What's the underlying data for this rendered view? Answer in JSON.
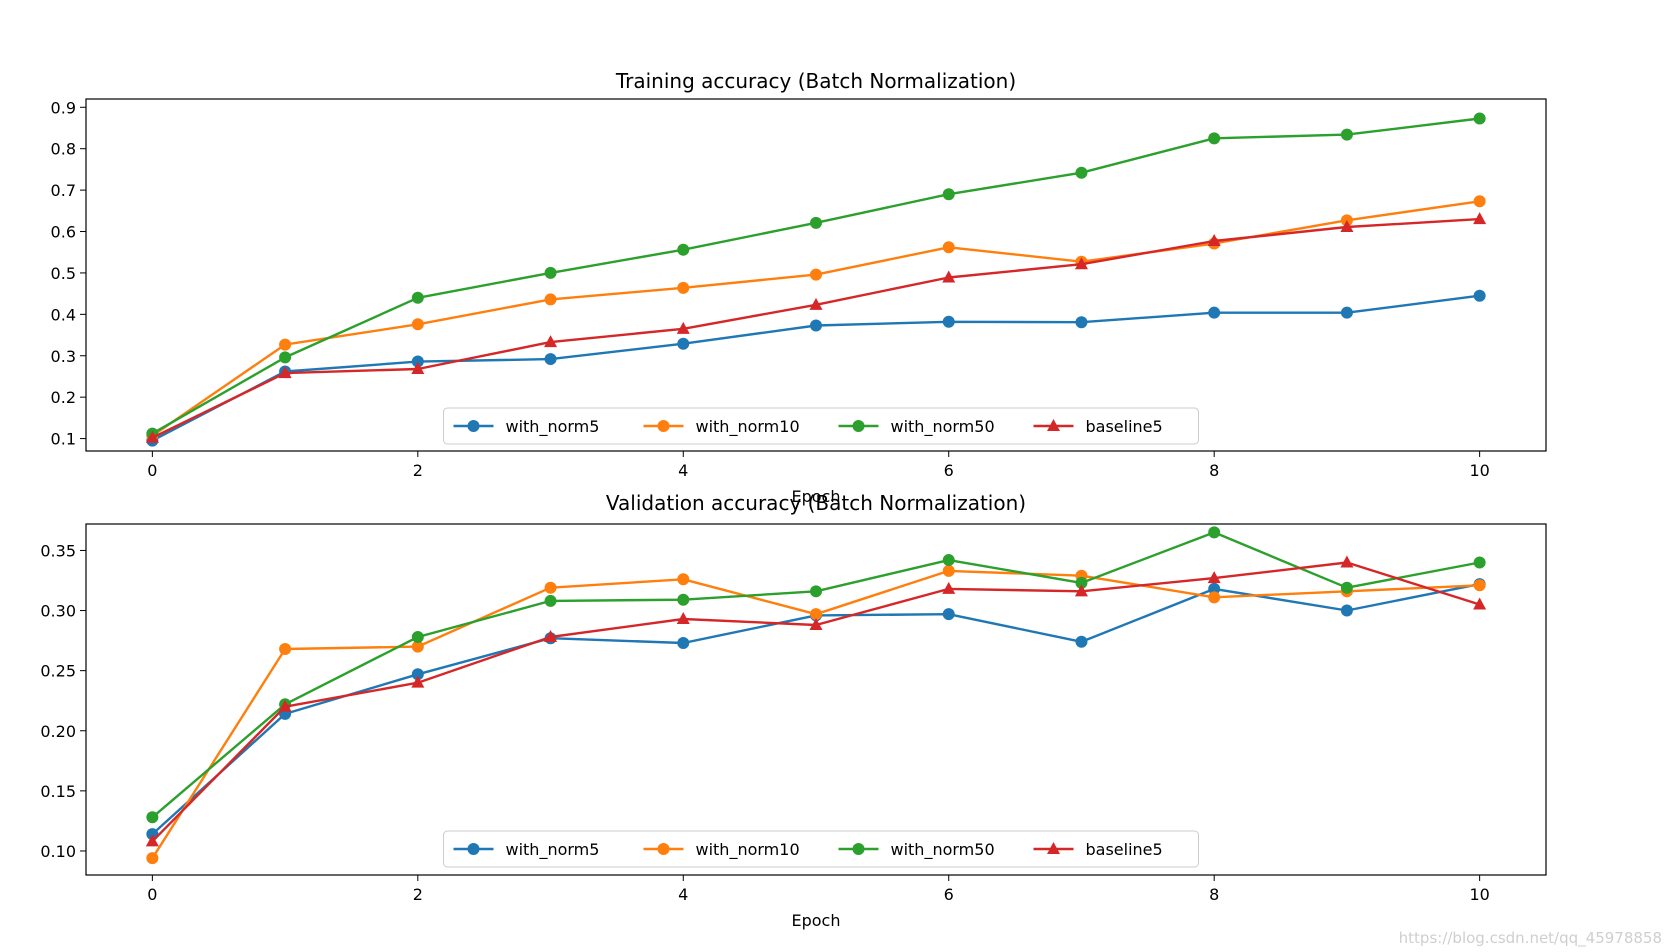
{
  "chart_data": [
    {
      "type": "line",
      "title": "Training accuracy (Batch Normalization)",
      "xlabel": "Epoch",
      "ylabel": "",
      "xlim": [
        -0.5,
        10.5
      ],
      "ylim": [
        0.07,
        0.92
      ],
      "xticks": [
        0,
        2,
        4,
        6,
        8,
        10
      ],
      "yticks": [
        0.1,
        0.2,
        0.3,
        0.4,
        0.5,
        0.6,
        0.7,
        0.8,
        0.9
      ],
      "ytick_labels": [
        "0.1",
        "0.2",
        "0.3",
        "0.4",
        "0.5",
        "0.6",
        "0.7",
        "0.8",
        "0.9"
      ],
      "x": [
        0,
        1,
        2,
        3,
        4,
        5,
        6,
        7,
        8,
        9,
        10
      ],
      "legend_position": "lower center",
      "series": [
        {
          "name": "with_norm5",
          "color": "#1f77b4",
          "marker": "circle",
          "values": [
            0.095,
            0.262,
            0.286,
            0.292,
            0.329,
            0.373,
            0.382,
            0.381,
            0.404,
            0.404,
            0.445
          ]
        },
        {
          "name": "with_norm10",
          "color": "#ff7f0e",
          "marker": "circle",
          "values": [
            0.107,
            0.327,
            0.376,
            0.436,
            0.464,
            0.496,
            0.562,
            0.527,
            0.571,
            0.627,
            0.673
          ]
        },
        {
          "name": "with_norm50",
          "color": "#2ca02c",
          "marker": "circle",
          "values": [
            0.112,
            0.296,
            0.44,
            0.5,
            0.556,
            0.621,
            0.69,
            0.742,
            0.825,
            0.834,
            0.873
          ]
        },
        {
          "name": "baseline5",
          "color": "#d62728",
          "marker": "triangle",
          "values": [
            0.102,
            0.258,
            0.268,
            0.333,
            0.365,
            0.423,
            0.489,
            0.521,
            0.577,
            0.611,
            0.63
          ]
        }
      ]
    },
    {
      "type": "line",
      "title": "Validation accuracy (Batch Normalization)",
      "xlabel": "Epoch",
      "ylabel": "",
      "xlim": [
        -0.5,
        10.5
      ],
      "ylim": [
        0.08,
        0.372
      ],
      "xticks": [
        0,
        2,
        4,
        6,
        8,
        10
      ],
      "yticks": [
        0.1,
        0.15,
        0.2,
        0.25,
        0.3,
        0.35
      ],
      "ytick_labels": [
        "0.10",
        "0.15",
        "0.20",
        "0.25",
        "0.30",
        "0.35"
      ],
      "x": [
        0,
        1,
        2,
        3,
        4,
        5,
        6,
        7,
        8,
        9,
        10
      ],
      "legend_position": "lower center",
      "series": [
        {
          "name": "with_norm5",
          "color": "#1f77b4",
          "marker": "circle",
          "values": [
            0.114,
            0.214,
            0.247,
            0.277,
            0.273,
            0.296,
            0.297,
            0.274,
            0.318,
            0.3,
            0.322
          ]
        },
        {
          "name": "with_norm10",
          "color": "#ff7f0e",
          "marker": "circle",
          "values": [
            0.094,
            0.268,
            0.27,
            0.319,
            0.326,
            0.297,
            0.333,
            0.329,
            0.311,
            0.316,
            0.321
          ]
        },
        {
          "name": "with_norm50",
          "color": "#2ca02c",
          "marker": "circle",
          "values": [
            0.128,
            0.222,
            0.278,
            0.308,
            0.309,
            0.316,
            0.342,
            0.323,
            0.365,
            0.319,
            0.34
          ]
        },
        {
          "name": "baseline5",
          "color": "#d62728",
          "marker": "triangle",
          "values": [
            0.108,
            0.22,
            0.24,
            0.278,
            0.293,
            0.288,
            0.318,
            0.316,
            0.327,
            0.34,
            0.305
          ]
        }
      ]
    }
  ],
  "watermark": "https://blog.csdn.net/qq_45978858"
}
